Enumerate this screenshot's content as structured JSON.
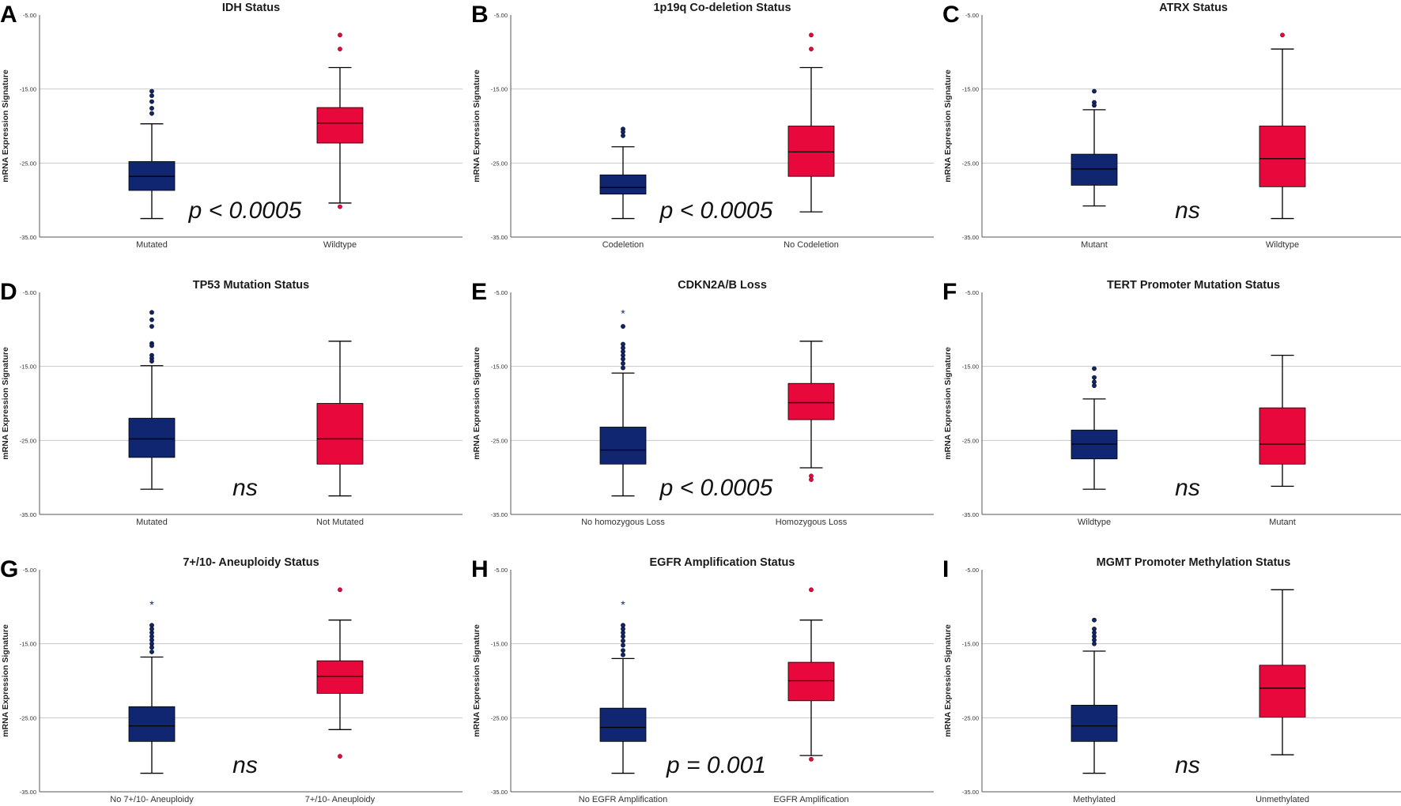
{
  "colors": {
    "group_a": "#102670",
    "group_b": "#e8083c",
    "gridline": "#c8c8c8",
    "axis": "#555555"
  },
  "chart_data": [
    {
      "type": "boxplot",
      "letter": "A",
      "title": "IDH Status",
      "ylabel": "mRNA Expression Signature",
      "yticks": [
        -5.0,
        -15.0,
        -25.0,
        -35.0
      ],
      "ytick_labels": [
        "-5.00",
        "-15.00",
        "-25.00",
        "-35.00"
      ],
      "ylim": [
        -35,
        -5
      ],
      "annotation": "p < 0.0005",
      "groups": [
        {
          "label": "Mutated",
          "min": -32.5,
          "q1": -28.7,
          "median": -26.8,
          "q3": -24.8,
          "max": -19.7,
          "outliers": [
            {
              "v": -15.3,
              "m": "o"
            },
            {
              "v": -15.9,
              "m": "o"
            },
            {
              "v": -16.7,
              "m": "o"
            },
            {
              "v": -17.6,
              "m": "o"
            },
            {
              "v": -18.3,
              "m": "o"
            }
          ]
        },
        {
          "label": "Wildtype",
          "min": -30.4,
          "q1": -22.3,
          "median": -19.6,
          "q3": -17.5,
          "max": -12.1,
          "outliers": [
            {
              "v": -7.7,
              "m": "o"
            },
            {
              "v": -9.6,
              "m": "o"
            },
            {
              "v": -30.9,
              "m": "o"
            }
          ]
        }
      ]
    },
    {
      "type": "boxplot",
      "letter": "B",
      "title": "1p19q Co-deletion Status",
      "ylabel": "mRNA Expression Signature",
      "yticks": [
        -5.0,
        -15.0,
        -25.0,
        -35.0
      ],
      "ytick_labels": [
        "-5.00",
        "-15.00",
        "-25.00",
        "-35.00"
      ],
      "ylim": [
        -35,
        -5
      ],
      "annotation": "p < 0.0005",
      "groups": [
        {
          "label": "Codeletion",
          "min": -32.5,
          "q1": -29.2,
          "median": -28.3,
          "q3": -26.6,
          "max": -22.8,
          "outliers": [
            {
              "v": -20.4,
              "m": "o"
            },
            {
              "v": -20.8,
              "m": "o"
            },
            {
              "v": -21.3,
              "m": "o"
            }
          ]
        },
        {
          "label": "No Codeletion",
          "min": -31.6,
          "q1": -26.8,
          "median": -23.5,
          "q3": -20.0,
          "max": -12.1,
          "outliers": [
            {
              "v": -7.7,
              "m": "o"
            },
            {
              "v": -9.6,
              "m": "o"
            }
          ]
        }
      ]
    },
    {
      "type": "boxplot",
      "letter": "C",
      "title": "ATRX Status",
      "ylabel": "mRNA Expression Signature",
      "yticks": [
        -5.0,
        -15.0,
        -25.0,
        -35.0
      ],
      "ytick_labels": [
        "-5.00",
        "-15.00",
        "-25.00",
        "-35.00"
      ],
      "ylim": [
        -35,
        -5
      ],
      "annotation": "ns",
      "groups": [
        {
          "label": "Mutant",
          "min": -30.8,
          "q1": -28.0,
          "median": -25.8,
          "q3": -23.8,
          "max": -17.8,
          "outliers": [
            {
              "v": -15.3,
              "m": "o"
            },
            {
              "v": -16.8,
              "m": "o"
            },
            {
              "v": -17.2,
              "m": "o"
            }
          ]
        },
        {
          "label": "Wildtype",
          "min": -32.5,
          "q1": -28.2,
          "median": -24.4,
          "q3": -20.0,
          "max": -9.6,
          "outliers": [
            {
              "v": -7.7,
              "m": "o"
            }
          ]
        }
      ]
    },
    {
      "type": "boxplot",
      "letter": "D",
      "title": "TP53 Mutation Status",
      "ylabel": "mRNA Expression Signature",
      "yticks": [
        -5.0,
        -15.0,
        -25.0,
        -35.0
      ],
      "ytick_labels": [
        "-5.00",
        "-15.00",
        "-25.00",
        "-35.00"
      ],
      "ylim": [
        -35,
        -5
      ],
      "annotation": "ns",
      "groups": [
        {
          "label": "Mutated",
          "min": -31.6,
          "q1": -27.3,
          "median": -24.8,
          "q3": -22.0,
          "max": -14.9,
          "outliers": [
            {
              "v": -7.7,
              "m": "o"
            },
            {
              "v": -8.7,
              "m": "o"
            },
            {
              "v": -9.6,
              "m": "o"
            },
            {
              "v": -11.9,
              "m": "o"
            },
            {
              "v": -12.2,
              "m": "o"
            },
            {
              "v": -13.5,
              "m": "o"
            },
            {
              "v": -13.9,
              "m": "o"
            },
            {
              "v": -14.3,
              "m": "o"
            }
          ]
        },
        {
          "label": "Not Mutated",
          "min": -32.5,
          "q1": -28.2,
          "median": -24.8,
          "q3": -20.0,
          "max": -11.6,
          "outliers": []
        }
      ]
    },
    {
      "type": "boxplot",
      "letter": "E",
      "title": "CDKN2A/B Loss",
      "ylabel": "mRNA Expression Signature",
      "yticks": [
        -5.0,
        -15.0,
        -25.0,
        -35.0
      ],
      "ytick_labels": [
        "-5.00",
        "-15.00",
        "-25.00",
        "-35.00"
      ],
      "ylim": [
        -35,
        -5
      ],
      "annotation": "p < 0.0005",
      "groups": [
        {
          "label": "No homozygous Loss",
          "min": -32.5,
          "q1": -28.2,
          "median": -26.3,
          "q3": -23.2,
          "max": -15.9,
          "outliers": [
            {
              "v": -7.7,
              "m": "*"
            },
            {
              "v": -9.6,
              "m": "o"
            },
            {
              "v": -12.0,
              "m": "o"
            },
            {
              "v": -12.5,
              "m": "o"
            },
            {
              "v": -13.0,
              "m": "o"
            },
            {
              "v": -13.5,
              "m": "o"
            },
            {
              "v": -14.0,
              "m": "o"
            },
            {
              "v": -14.6,
              "m": "o"
            },
            {
              "v": -15.2,
              "m": "o"
            }
          ]
        },
        {
          "label": "Homozygous Loss",
          "min": -28.7,
          "q1": -22.2,
          "median": -19.9,
          "q3": -17.3,
          "max": -11.6,
          "outliers": [
            {
              "v": -29.8,
              "m": "o"
            },
            {
              "v": -30.3,
              "m": "o"
            }
          ]
        }
      ]
    },
    {
      "type": "boxplot",
      "letter": "F",
      "title": "TERT Promoter Mutation Status",
      "ylabel": "mRNA Expression Signature",
      "yticks": [
        -5.0,
        -15.0,
        -25.0,
        -35.0
      ],
      "ytick_labels": [
        "-5.00",
        "-15.00",
        "-25.00",
        "-35.00"
      ],
      "ylim": [
        -35,
        -5
      ],
      "annotation": "ns",
      "groups": [
        {
          "label": "Wildtype",
          "min": -31.6,
          "q1": -27.5,
          "median": -25.5,
          "q3": -23.6,
          "max": -19.4,
          "outliers": [
            {
              "v": -15.3,
              "m": "o"
            },
            {
              "v": -16.5,
              "m": "o"
            },
            {
              "v": -17.1,
              "m": "o"
            },
            {
              "v": -17.6,
              "m": "o"
            }
          ]
        },
        {
          "label": "Mutant",
          "min": -31.2,
          "q1": -28.2,
          "median": -25.5,
          "q3": -20.6,
          "max": -13.5,
          "outliers": []
        }
      ]
    },
    {
      "type": "boxplot",
      "letter": "G",
      "title": "7+/10- Aneuploidy Status",
      "ylabel": "mRNA Expression Signature",
      "yticks": [
        -5.0,
        -15.0,
        -25.0,
        -35.0
      ],
      "ytick_labels": [
        "-5.00",
        "-15.00",
        "-25.00",
        "-35.00"
      ],
      "ylim": [
        -35,
        -5
      ],
      "annotation": "ns",
      "groups": [
        {
          "label": "No 7+/10- Aneuploidy",
          "min": -32.5,
          "q1": -28.2,
          "median": -26.1,
          "q3": -23.5,
          "max": -16.8,
          "outliers": [
            {
              "v": -9.6,
              "m": "*"
            },
            {
              "v": -12.5,
              "m": "o"
            },
            {
              "v": -13.0,
              "m": "o"
            },
            {
              "v": -13.5,
              "m": "o"
            },
            {
              "v": -14.0,
              "m": "o"
            },
            {
              "v": -14.5,
              "m": "o"
            },
            {
              "v": -15.0,
              "m": "o"
            },
            {
              "v": -15.5,
              "m": "o"
            },
            {
              "v": -16.1,
              "m": "o"
            }
          ]
        },
        {
          "label": "7+/10- Aneuploidy",
          "min": -26.6,
          "q1": -21.7,
          "median": -19.4,
          "q3": -17.3,
          "max": -11.8,
          "outliers": [
            {
              "v": -7.7,
              "m": "o"
            },
            {
              "v": -30.2,
              "m": "o"
            }
          ]
        }
      ]
    },
    {
      "type": "boxplot",
      "letter": "H",
      "title": "EGFR Amplification Status",
      "ylabel": "mRNA Expression Signature",
      "yticks": [
        -5.0,
        -15.0,
        -25.0,
        -35.0
      ],
      "ytick_labels": [
        "-5.00",
        "-15.00",
        "-25.00",
        "-35.00"
      ],
      "ylim": [
        -35,
        -5
      ],
      "annotation": "p = 0.001",
      "groups": [
        {
          "label": "No EGFR Amplification",
          "min": -32.5,
          "q1": -28.2,
          "median": -26.3,
          "q3": -23.7,
          "max": -17.0,
          "outliers": [
            {
              "v": -9.6,
              "m": "*"
            },
            {
              "v": -12.5,
              "m": "o"
            },
            {
              "v": -13.0,
              "m": "o"
            },
            {
              "v": -13.5,
              "m": "o"
            },
            {
              "v": -14.0,
              "m": "o"
            },
            {
              "v": -14.6,
              "m": "o"
            },
            {
              "v": -15.2,
              "m": "o"
            },
            {
              "v": -15.9,
              "m": "o"
            },
            {
              "v": -16.5,
              "m": "o"
            }
          ]
        },
        {
          "label": "EGFR Amplification",
          "min": -30.1,
          "q1": -22.7,
          "median": -20.0,
          "q3": -17.5,
          "max": -11.8,
          "outliers": [
            {
              "v": -7.7,
              "m": "o"
            },
            {
              "v": -30.6,
              "m": "o"
            }
          ]
        }
      ]
    },
    {
      "type": "boxplot",
      "letter": "I",
      "title": "MGMT Promoter Methylation Status",
      "ylabel": "mRNA Expression Signature",
      "yticks": [
        -5.0,
        -15.0,
        -25.0,
        -35.0
      ],
      "ytick_labels": [
        "-5.00",
        "-15.00",
        "-25.00",
        "-35.00"
      ],
      "ylim": [
        -35,
        -5
      ],
      "annotation": "ns",
      "groups": [
        {
          "label": "Methylated",
          "min": -32.5,
          "q1": -28.2,
          "median": -26.1,
          "q3": -23.3,
          "max": -16.0,
          "outliers": [
            {
              "v": -11.8,
              "m": "o"
            },
            {
              "v": -13.0,
              "m": "o"
            },
            {
              "v": -13.5,
              "m": "o"
            },
            {
              "v": -14.0,
              "m": "o"
            },
            {
              "v": -14.5,
              "m": "o"
            },
            {
              "v": -15.0,
              "m": "o"
            }
          ]
        },
        {
          "label": "Unmethylated",
          "min": -30.0,
          "q1": -24.9,
          "median": -21.0,
          "q3": -17.9,
          "max": -7.7,
          "outliers": []
        }
      ]
    }
  ]
}
